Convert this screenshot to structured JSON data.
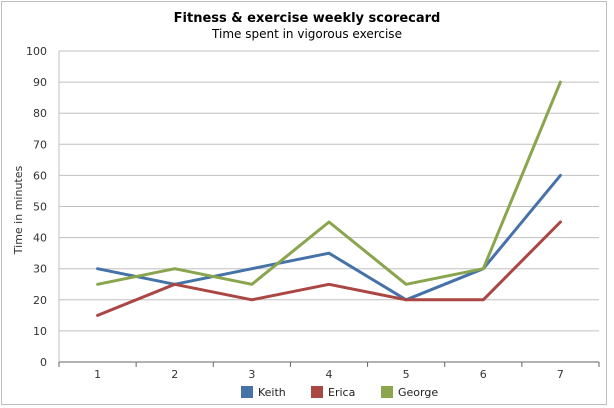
{
  "chart_data": {
    "type": "line",
    "title": "Fitness & exercise weekly scorecard",
    "subtitle": "Time spent in vigorous exercise",
    "xlabel": "",
    "ylabel": "Time in minutes",
    "x": [
      1,
      2,
      3,
      4,
      5,
      6,
      7
    ],
    "ylim": [
      0,
      100
    ],
    "yticks": [
      0,
      10,
      20,
      30,
      40,
      50,
      60,
      70,
      80,
      90,
      100
    ],
    "grid": true,
    "legend": "bottom",
    "series": [
      {
        "name": "Keith",
        "color": "#4572a7",
        "values": [
          30,
          25,
          30,
          35,
          20,
          30,
          60
        ]
      },
      {
        "name": "Erica",
        "color": "#aa4643",
        "values": [
          15,
          25,
          20,
          25,
          20,
          20,
          45
        ]
      },
      {
        "name": "George",
        "color": "#89a54e",
        "values": [
          25,
          30,
          25,
          45,
          25,
          30,
          90
        ]
      }
    ]
  }
}
